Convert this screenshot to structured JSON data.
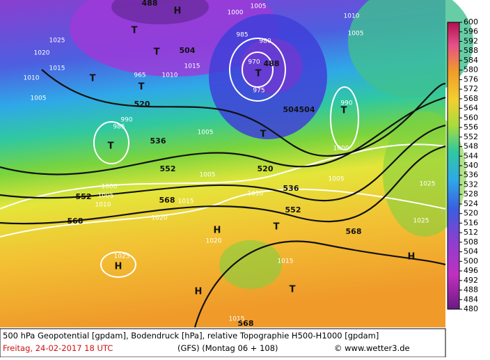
{
  "map_labels": [
    "T",
    "H",
    "T",
    "T",
    "T",
    "504",
    "520",
    "536",
    "552",
    "552",
    "568",
    "568",
    "H",
    "T",
    "568",
    "H",
    "H",
    "T",
    "H",
    "488",
    "T",
    "504",
    "504",
    "T",
    "T",
    "T",
    "520",
    "536",
    "552",
    "568",
    "1010",
    "1005",
    "1020",
    "1025",
    "1015",
    "1010",
    "1005",
    "980",
    "970",
    "975",
    "985",
    "990",
    "985",
    "1010",
    "1005",
    "1000",
    "1015",
    "1020",
    "1020",
    "1025",
    "1015",
    "1015",
    "1025",
    "1025",
    "1005",
    "1010",
    "1005",
    "1005",
    "1000",
    "1005",
    "990",
    "1000",
    "1010",
    "1015",
    "965",
    "488"
  ],
  "legend": {
    "labels": [
      "600",
      "596",
      "592",
      "588",
      "584",
      "580",
      "576",
      "572",
      "568",
      "564",
      "560",
      "556",
      "552",
      "548",
      "544",
      "540",
      "536",
      "532",
      "528",
      "524",
      "520",
      "516",
      "512",
      "508",
      "504",
      "500",
      "496",
      "492",
      "488",
      "484",
      "480"
    ]
  },
  "footer": {
    "line1": "500 hPa Geopotential [gpdam], Bodendruck [hPa], relative Topographie H500-H1000 [gpdam]",
    "date": "Freitag, 24-02-2017  18 UTC",
    "run": "(GFS)  (Montag 06 + 108)",
    "credit": "© www.wetter3.de"
  }
}
